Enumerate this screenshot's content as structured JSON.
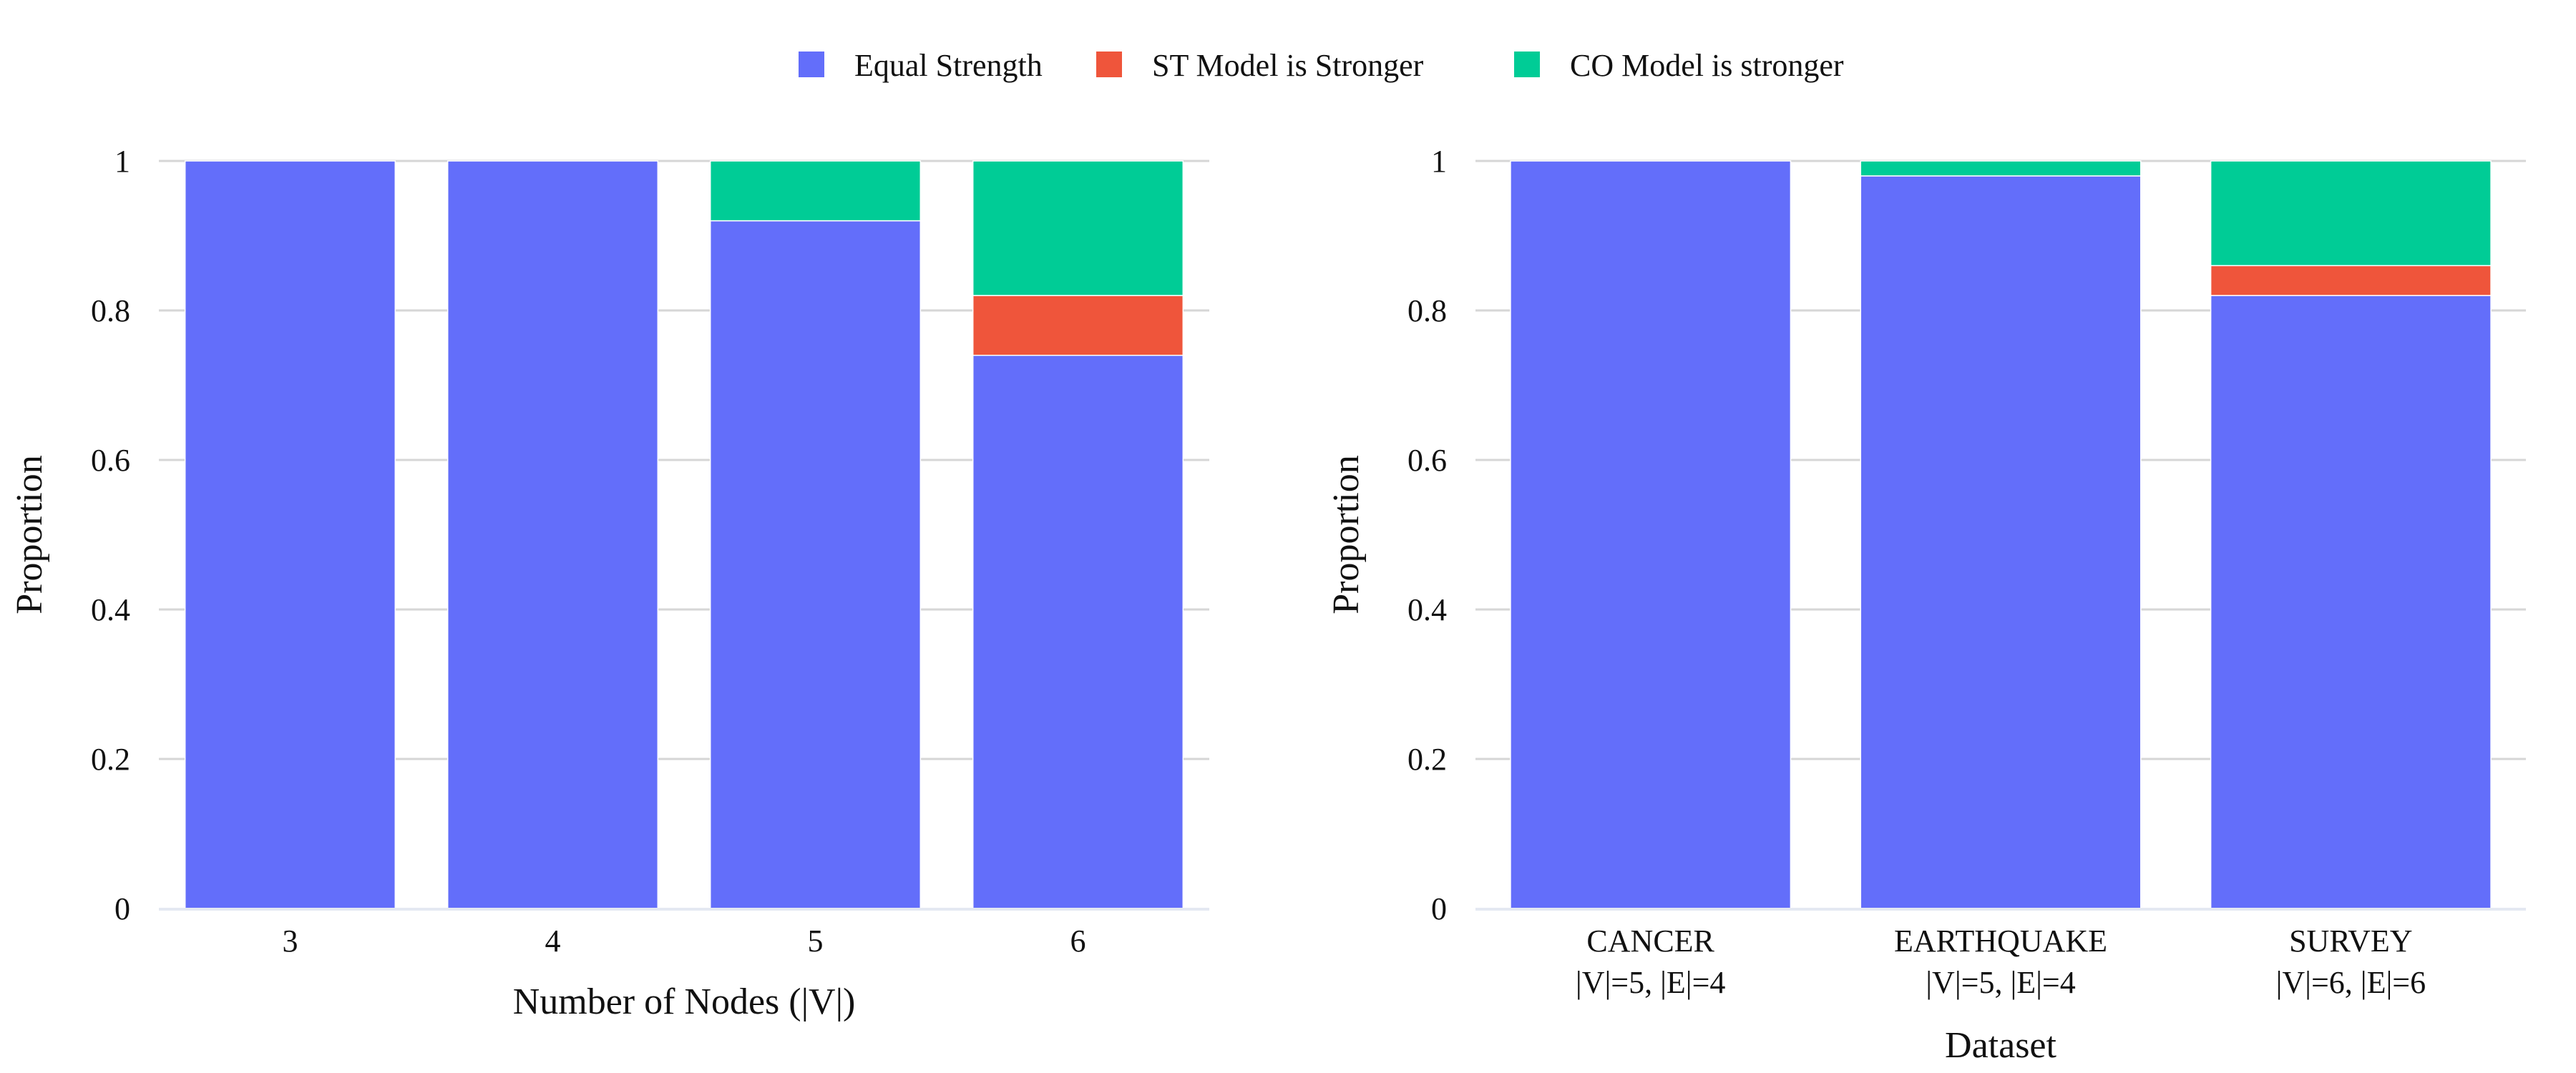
{
  "legend": {
    "placement": "top-center",
    "items": [
      {
        "label": "Equal Strength",
        "color": "#636EFA"
      },
      {
        "label": "ST Model is Stronger",
        "color": "#EF553B"
      },
      {
        "label": "CO Model is stronger",
        "color": "#00CC96"
      }
    ]
  },
  "chart_data": [
    {
      "type": "bar",
      "stacked": true,
      "grid": true,
      "xlabel": "Number of Nodes (|V|)",
      "ylabel": "Proportion",
      "ylim": [
        0,
        1
      ],
      "yticks": [
        "0",
        "0.2",
        "0.4",
        "0.6",
        "0.8",
        "1"
      ],
      "categories": [
        [
          "3"
        ],
        [
          "4"
        ],
        [
          "5"
        ],
        [
          "6"
        ]
      ],
      "series": [
        {
          "name": "Equal Strength",
          "color": "#636EFA",
          "values": [
            1.0,
            1.0,
            0.92,
            0.74
          ]
        },
        {
          "name": "ST Model is Stronger",
          "color": "#EF553B",
          "values": [
            0.0,
            0.0,
            0.0,
            0.08
          ]
        },
        {
          "name": "CO Model is stronger",
          "color": "#00CC96",
          "values": [
            0.0,
            0.0,
            0.08,
            0.18
          ]
        }
      ]
    },
    {
      "type": "bar",
      "stacked": true,
      "grid": true,
      "xlabel": "Dataset",
      "ylabel": "Proportion",
      "ylim": [
        0,
        1
      ],
      "yticks": [
        "0",
        "0.2",
        "0.4",
        "0.6",
        "0.8",
        "1"
      ],
      "categories": [
        [
          "CANCER",
          "|V|=5, |E|=4"
        ],
        [
          "EARTHQUAKE",
          "|V|=5, |E|=4"
        ],
        [
          "SURVEY",
          "|V|=6, |E|=6"
        ]
      ],
      "series": [
        {
          "name": "Equal Strength",
          "color": "#636EFA",
          "values": [
            1.0,
            0.98,
            0.82
          ]
        },
        {
          "name": "ST Model is Stronger",
          "color": "#EF553B",
          "values": [
            0.0,
            0.0,
            0.04
          ]
        },
        {
          "name": "CO Model is stronger",
          "color": "#00CC96",
          "values": [
            0.0,
            0.02,
            0.14
          ]
        }
      ]
    }
  ]
}
